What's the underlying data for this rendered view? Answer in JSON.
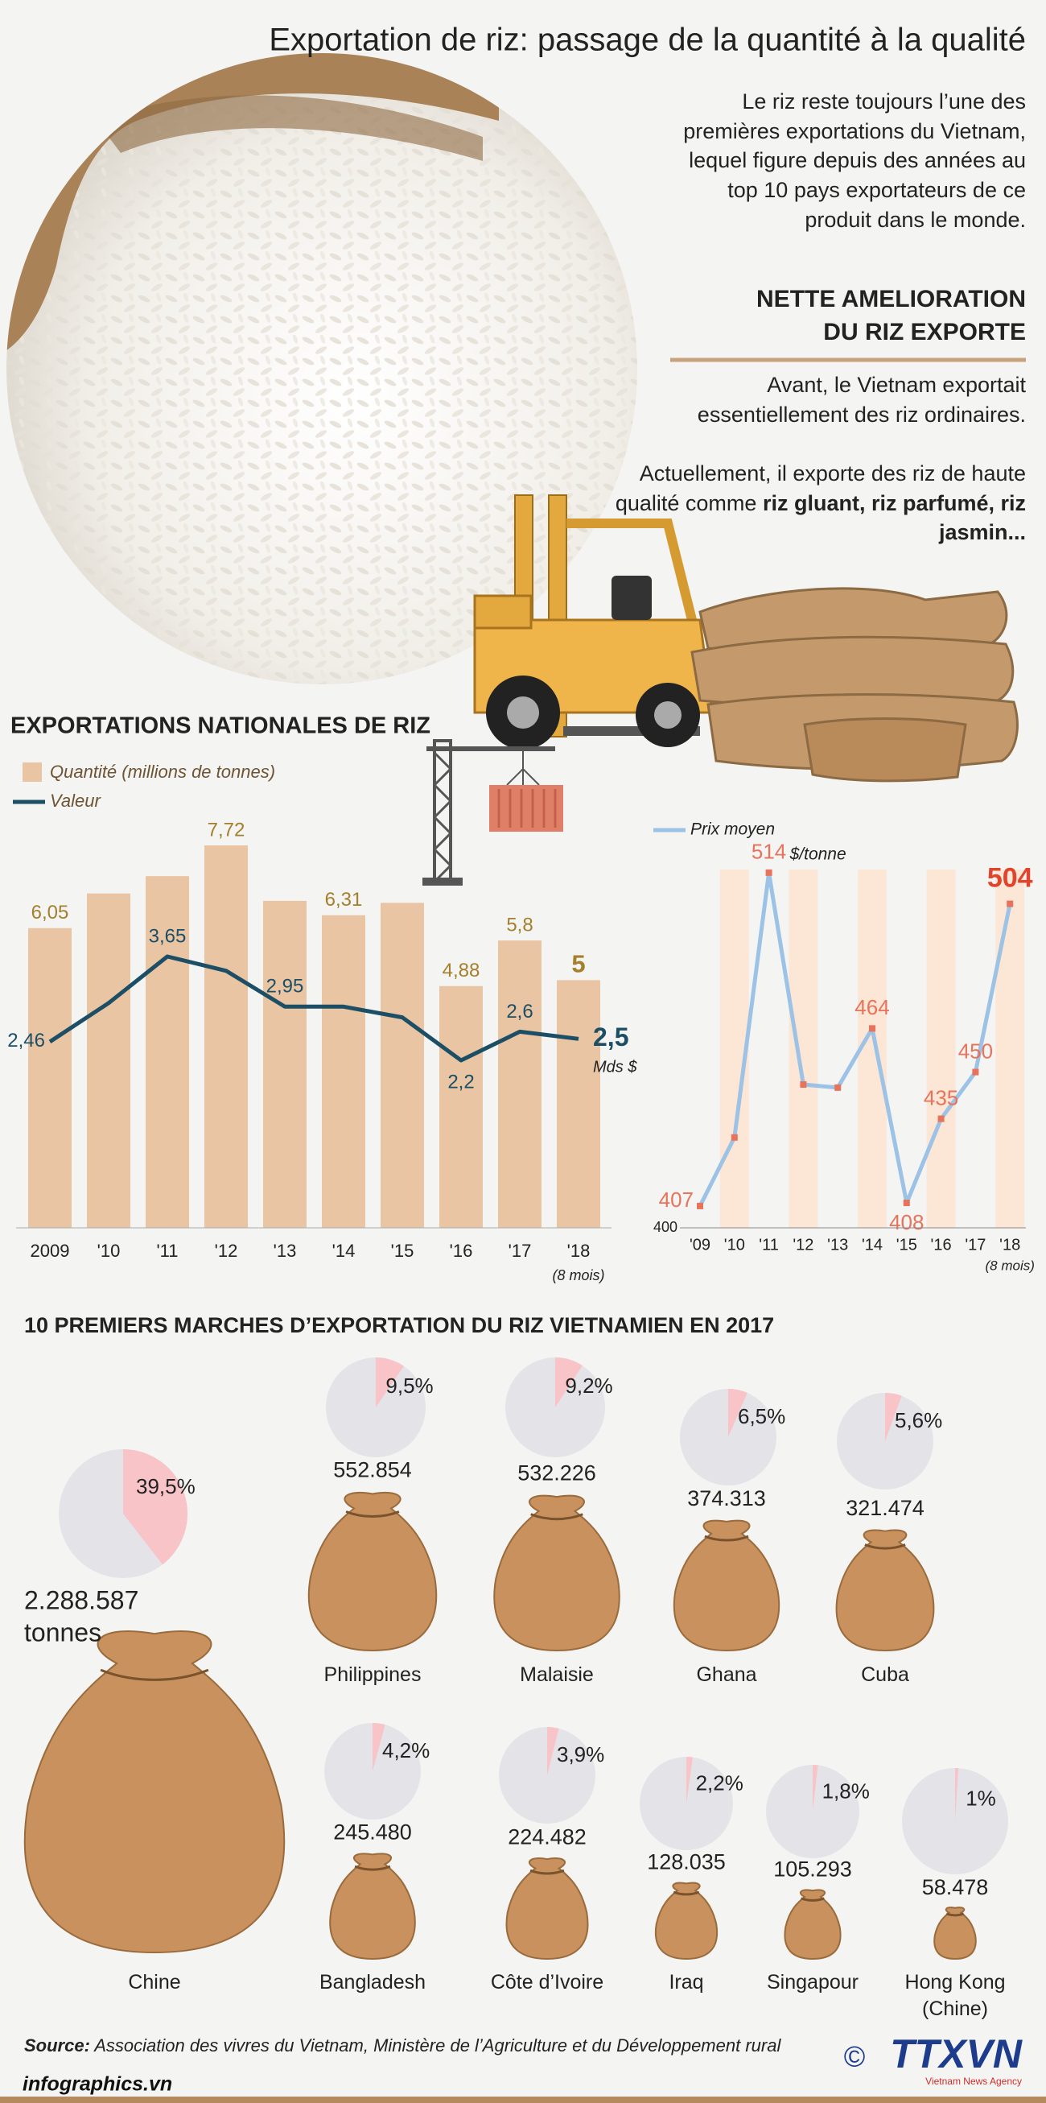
{
  "title": "Exportation de riz: passage de la quantité à la qualité",
  "intro": "Le riz reste toujours l’une des premières exportations du Vietnam, lequel figure depuis des années au top 10 pays exportateurs de ce produit dans le monde.",
  "highlight": {
    "heading_lines": [
      "NETTE AMELIORATION",
      "DU RIZ EXPORTE"
    ],
    "paragraph1": "Avant, le Vietnam exportait essentiellement des riz ordinaires.",
    "paragraph2": "Actuellement, il exporte des riz de haute qualité comme",
    "paragraph2_bold": "riz gluant, riz parfumé, riz jasmin..."
  },
  "chart_data": [
    {
      "type": "bar",
      "title": "EXPORTATIONS NATIONALES DE RIZ",
      "categories": [
        "2009",
        "'10",
        "'11",
        "'12",
        "'13",
        "'14",
        "'15",
        "'16",
        "'17",
        "'18"
      ],
      "last_category_note": "(8 mois)",
      "series": [
        {
          "name": "Quantité (millions de tonnes)",
          "type": "bar",
          "color": "#e9c5a3",
          "values": [
            6.05,
            6.75,
            7.1,
            7.72,
            6.6,
            6.31,
            6.56,
            4.88,
            5.8,
            5
          ],
          "value_labels": [
            "6,05",
            null,
            null,
            "7,72",
            null,
            "6,31",
            null,
            "4,88",
            "5,8",
            "5"
          ]
        },
        {
          "name": "Valeur",
          "type": "line",
          "color": "#1c4f66",
          "unit": "Mds $",
          "values": [
            2.46,
            3.0,
            3.65,
            3.45,
            2.95,
            2.95,
            2.8,
            2.2,
            2.6,
            2.5
          ],
          "value_labels": [
            "2,46",
            null,
            "3,65",
            null,
            "2,95",
            null,
            null,
            "2,2",
            "2,6",
            "2,5"
          ]
        }
      ]
    },
    {
      "type": "line",
      "categories": [
        "'09",
        "'10",
        "'11",
        "'12",
        "'13",
        "'14",
        "'15",
        "'16",
        "'17",
        "'18"
      ],
      "last_category_note": "(8 mois)",
      "series": [
        {
          "name": "Prix moyen",
          "color": "#9cc2e6",
          "point_color": "#e8735a",
          "unit": "$/tonne",
          "values": [
            407,
            429,
            514,
            446,
            445,
            464,
            408,
            435,
            450,
            504
          ],
          "value_labels": [
            "407",
            null,
            "514",
            null,
            null,
            "464",
            "408",
            "435",
            "450",
            "504"
          ]
        }
      ],
      "ylim": [
        400,
        515
      ],
      "yticks": [
        400
      ],
      "stripe_color": "#fce6d6"
    },
    {
      "type": "pie-grid",
      "title": "10 PREMIERS MARCHES D’EXPORTATION DU RIZ VIETNAMIEN EN 2017",
      "categories": [
        "Chine",
        "Philippines",
        "Malaisie",
        "Ghana",
        "Cuba",
        "Bangladesh",
        "Côte d’Ivoire",
        "Iraq",
        "Singapour",
        "Hong Kong (Chine)"
      ],
      "values": [
        39.5,
        9.5,
        9.2,
        6.5,
        5.6,
        4.2,
        3.9,
        2.2,
        1.8,
        1
      ],
      "value_labels": [
        "39,5%",
        "9,5%",
        "9,2%",
        "6,5%",
        "5,6%",
        "4,2%",
        "3,9%",
        "2,2%",
        "1,8%",
        "1%"
      ],
      "quantities": [
        2288587,
        552854,
        532226,
        374313,
        321474,
        245480,
        224482,
        128035,
        105293,
        58478
      ],
      "quantity_labels": [
        "2.288.587",
        "552.854",
        "532.226",
        "374.313",
        "321.474",
        "245.480",
        "224.482",
        "128.035",
        "105.293",
        "58.478"
      ],
      "quantity_unit": "tonnes",
      "slice_color": "#f8c4c8",
      "pie_color": "#e4e4e8",
      "bag_color": "#c8915e"
    }
  ],
  "source": {
    "label": "Source:",
    "text": "Association des vivres du Vietnam, Ministère de l’Agriculture et du Développement rural"
  },
  "footer": "infographics.vn",
  "logo": {
    "copyright": "©",
    "name": "TTXVN",
    "sub": "Vietnam News Agency"
  }
}
